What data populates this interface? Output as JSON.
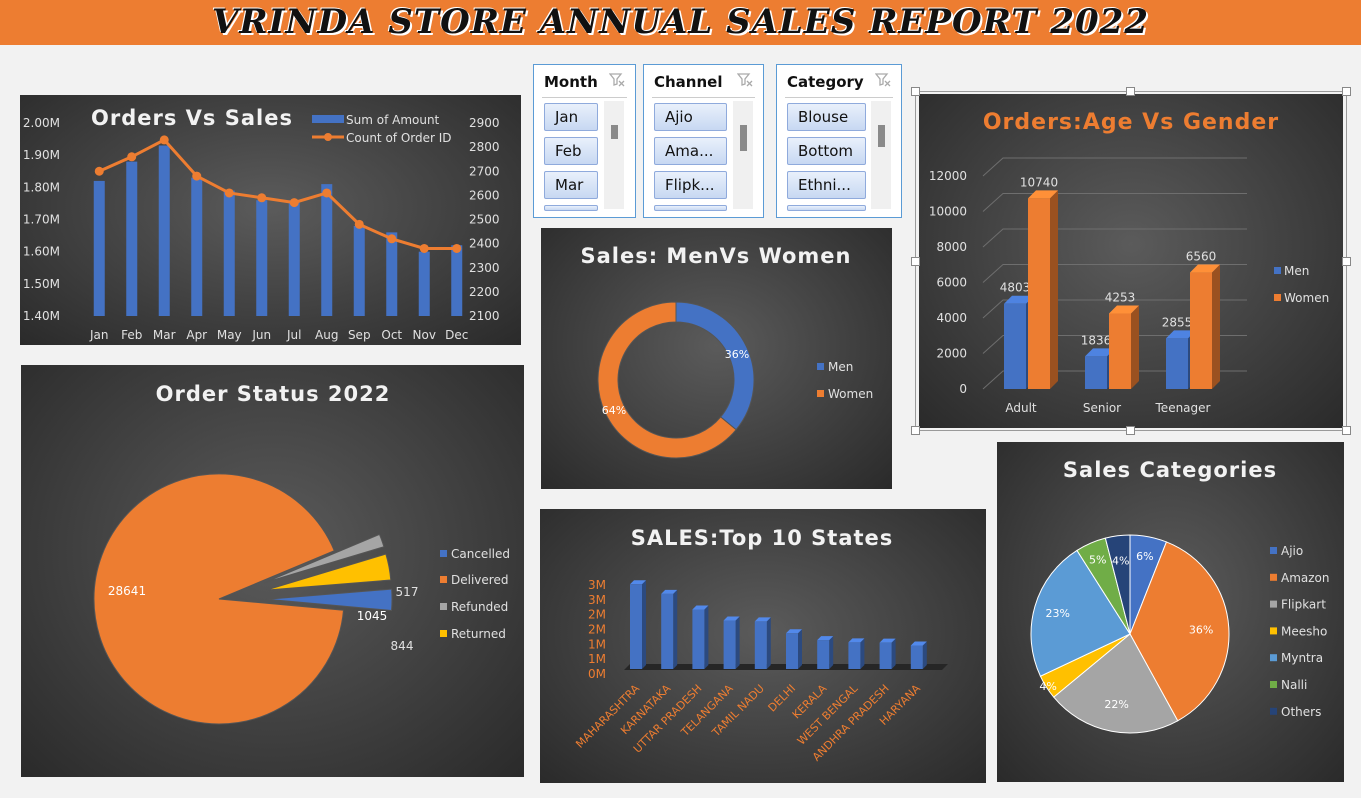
{
  "header": {
    "title": "VRINDA STORE ANNUAL SALES REPORT 2022"
  },
  "slicers": [
    {
      "name": "Month",
      "items": [
        "Jan",
        "Feb",
        "Mar"
      ]
    },
    {
      "name": "Channel",
      "items": [
        "Ajio",
        "Ama...",
        "Flipk..."
      ]
    },
    {
      "name": "Category",
      "items": [
        "Blouse",
        "Bottom",
        "Ethni..."
      ]
    }
  ],
  "colors": {
    "blue": "#4472c4",
    "orange": "#ed7d31",
    "gray": "#a5a5a5",
    "yellow": "#ffc000",
    "lightblue": "#5b9bd5",
    "green": "#70ad47",
    "navy": "#264478",
    "header": "#ed7d31"
  },
  "chart_data": [
    {
      "id": "orders_vs_sales",
      "type": "bar",
      "title": "Orders Vs Sales",
      "categories": [
        "Jan",
        "Feb",
        "Mar",
        "Apr",
        "May",
        "Jun",
        "Jul",
        "Aug",
        "Sep",
        "Oct",
        "Nov",
        "Dec"
      ],
      "series": [
        {
          "name": "Sum of Amount",
          "type": "bar",
          "axis": "left",
          "values": [
            1.82,
            1.88,
            1.93,
            1.83,
            1.79,
            1.76,
            1.76,
            1.81,
            1.68,
            1.66,
            1.6,
            1.62
          ]
        },
        {
          "name": "Count of Order ID",
          "type": "line",
          "axis": "right",
          "values": [
            2700,
            2760,
            2830,
            2680,
            2610,
            2590,
            2570,
            2610,
            2480,
            2420,
            2380,
            2380
          ]
        }
      ],
      "y_left_ticks": [
        "1.40M",
        "1.50M",
        "1.60M",
        "1.70M",
        "1.80M",
        "1.90M",
        "2.00M"
      ],
      "ylim_left": [
        1.4,
        2.0
      ],
      "y_right_ticks": [
        "2100",
        "2200",
        "2300",
        "2400",
        "2500",
        "2600",
        "2700",
        "2800",
        "2900"
      ],
      "ylim_right": [
        2100,
        2900
      ],
      "legend": "top-right"
    },
    {
      "id": "men_vs_women",
      "type": "pie",
      "subtype": "donut",
      "title": "Sales: MenVs Women",
      "categories": [
        "Men",
        "Women"
      ],
      "values": [
        36,
        64
      ],
      "labels": [
        "36%",
        "64%"
      ],
      "legend": "right"
    },
    {
      "id": "age_vs_gender",
      "type": "bar",
      "title": "Orders:Age Vs Gender",
      "categories": [
        "Adult",
        "Senior",
        "Teenager"
      ],
      "series": [
        {
          "name": "Men",
          "values": [
            4803,
            1836,
            2855
          ]
        },
        {
          "name": "Women",
          "values": [
            10740,
            4253,
            6560
          ]
        }
      ],
      "y_ticks": [
        "0",
        "2000",
        "4000",
        "6000",
        "8000",
        "10000",
        "12000"
      ],
      "ylim": [
        0,
        12000
      ],
      "legend": "right"
    },
    {
      "id": "order_status",
      "type": "pie",
      "title": "Order Status 2022",
      "categories": [
        "Cancelled",
        "Delivered",
        "Refunded",
        "Returned"
      ],
      "values": [
        844,
        28641,
        517,
        1045
      ],
      "labels": [
        "844",
        "28641",
        "517",
        "1045"
      ],
      "legend": "right"
    },
    {
      "id": "top_states",
      "type": "bar",
      "title": "SALES:Top 10 States",
      "categories": [
        "MAHARASHTRA",
        "KARNATAKA",
        "UTTAR PRADESH",
        "TELANGANA",
        "TAMIL NADU",
        "DELHI",
        "KERALA",
        "WEST BENGAL",
        "ANDHRA PRADESH",
        "HARYANA"
      ],
      "values": [
        2.99,
        2.65,
        2.1,
        1.71,
        1.68,
        1.26,
        1.02,
        0.94,
        0.93,
        0.83
      ],
      "y_ticks": [
        "0M",
        "1M",
        "1M",
        "2M",
        "2M",
        "3M",
        "3M"
      ],
      "ylim": [
        0,
        3
      ]
    },
    {
      "id": "sales_categories",
      "type": "pie",
      "title": "Sales Categories",
      "categories": [
        "Ajio",
        "Amazon",
        "Flipkart",
        "Meesho",
        "Myntra",
        "Nalli",
        "Others"
      ],
      "values": [
        6,
        36,
        22,
        4,
        23,
        5,
        4
      ],
      "labels": [
        "6%",
        "36%",
        "22%",
        "4%",
        "23%",
        "5%",
        "4%"
      ],
      "legend": "right"
    }
  ]
}
